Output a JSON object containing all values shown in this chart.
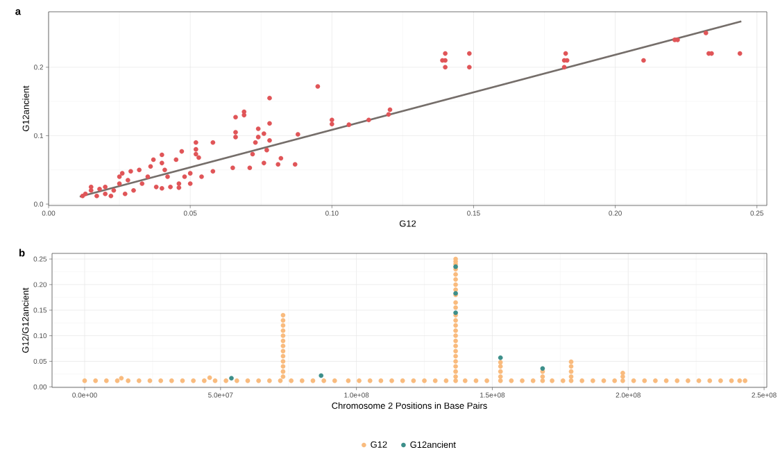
{
  "chart_data": [
    {
      "type": "scatter",
      "title": "a",
      "xlabel": "G12",
      "ylabel": "G12ancient",
      "xlim": [
        0,
        0.2535
      ],
      "ylim": [
        -0.002,
        0.281
      ],
      "xticks": [
        {
          "value": 0,
          "label": "0.00"
        },
        {
          "value": 0.05,
          "label": "0.05"
        },
        {
          "value": 0.1,
          "label": "0.10"
        },
        {
          "value": 0.15,
          "label": "0.15"
        },
        {
          "value": 0.2,
          "label": "0.20"
        },
        {
          "value": 0.25,
          "label": "0.25"
        }
      ],
      "yticks": [
        {
          "value": 0,
          "label": "0.0"
        },
        0.1,
        0.2
      ],
      "grid": true,
      "series": [
        {
          "color": "#e05558",
          "x": [
            0.012,
            0.013,
            0.015,
            0.015,
            0.017,
            0.018,
            0.02,
            0.02,
            0.022,
            0.023,
            0.025,
            0.025,
            0.026,
            0.027,
            0.028,
            0.03,
            0.029,
            0.032,
            0.033,
            0.035,
            0.036,
            0.037,
            0.038,
            0.04,
            0.04,
            0.04,
            0.041,
            0.042,
            0.043,
            0.045,
            0.046,
            0.046,
            0.047,
            0.048,
            0.05,
            0.05,
            0.052,
            0.052,
            0.052,
            0.053,
            0.054,
            0.058,
            0.058,
            0.065,
            0.066,
            0.066,
            0.066,
            0.069,
            0.069,
            0.071,
            0.072,
            0.073,
            0.074,
            0.074,
            0.076,
            0.076,
            0.077,
            0.078,
            0.078,
            0.078,
            0.081,
            0.082,
            0.087,
            0.088,
            0.095,
            0.1,
            0.1,
            0.106,
            0.113,
            0.1205,
            0.12,
            0.14,
            0.14,
            0.139,
            0.14,
            0.1485,
            0.1485,
            0.182,
            0.1825,
            0.183,
            0.182,
            0.21,
            0.221,
            0.222,
            0.232,
            0.233,
            0.234,
            0.244
          ],
          "values": [
            0.012,
            0.015,
            0.02,
            0.025,
            0.012,
            0.022,
            0.015,
            0.025,
            0.012,
            0.02,
            0.03,
            0.04,
            0.045,
            0.015,
            0.035,
            0.02,
            0.048,
            0.05,
            0.03,
            0.04,
            0.055,
            0.065,
            0.025,
            0.072,
            0.06,
            0.023,
            0.05,
            0.04,
            0.025,
            0.065,
            0.03,
            0.024,
            0.077,
            0.04,
            0.045,
            0.03,
            0.073,
            0.09,
            0.08,
            0.068,
            0.04,
            0.048,
            0.09,
            0.053,
            0.105,
            0.127,
            0.098,
            0.135,
            0.13,
            0.053,
            0.073,
            0.09,
            0.11,
            0.098,
            0.06,
            0.103,
            0.079,
            0.118,
            0.155,
            0.093,
            0.058,
            0.067,
            0.058,
            0.102,
            0.172,
            0.117,
            0.123,
            0.116,
            0.123,
            0.138,
            0.131,
            0.22,
            0.21,
            0.21,
            0.2,
            0.22,
            0.2,
            0.21,
            0.22,
            0.21,
            0.2,
            0.21,
            0.24,
            0.24,
            0.25,
            0.22,
            0.22,
            0.22
          ]
        },
        {
          "type": "line",
          "color": "#756e6a",
          "x": [
            0.011,
            0.2445
          ],
          "values": [
            0.011,
            0.267
          ]
        }
      ]
    },
    {
      "type": "scatter",
      "title": "b",
      "xlabel": "Chromosome 2 Positions in Base Pairs",
      "ylabel": "G12/G12ancient",
      "xlim": [
        -12000000,
        251000000
      ],
      "ylim": [
        -0.001,
        0.261
      ],
      "xticks": [
        {
          "value": 0,
          "label": "0.0e+00"
        },
        {
          "value": 50000000,
          "label": "5.0e+07"
        },
        {
          "value": 100000000,
          "label": "1.0e+08"
        },
        {
          "value": 150000000,
          "label": "1.5e+08"
        },
        {
          "value": 200000000,
          "label": "2.0e+08"
        },
        {
          "value": 250000000,
          "label": "2.5e+08"
        }
      ],
      "yticks": [
        {
          "value": 0,
          "label": "0.00"
        },
        0.05,
        {
          "value": 0.1,
          "label": "0.10"
        },
        0.15,
        {
          "value": 0.2,
          "label": "0.20"
        },
        0.25
      ],
      "grid": true,
      "legend": "bottom",
      "series": [
        {
          "name": "G12",
          "color": "#f9bb7e",
          "x": [
            0,
            4000000,
            8000000,
            12000000,
            13500000,
            16000000,
            20000000,
            24000000,
            28000000,
            32000000,
            36000000,
            40000000,
            44000000,
            46000000,
            48000000,
            52000000,
            56000000,
            60000000,
            64000000,
            68000000,
            72000000,
            73000000,
            73000000,
            73000000,
            73000000,
            73000000,
            73000000,
            73000000,
            73000000,
            73000000,
            73000000,
            73000000,
            73000000,
            73000000,
            76000000,
            80000000,
            84000000,
            88000000,
            92000000,
            97000000,
            101000000,
            105000000,
            109000000,
            113000000,
            117000000,
            121000000,
            125000000,
            129000000,
            133000000,
            136500000,
            136500000,
            136500000,
            136500000,
            136500000,
            136500000,
            136500000,
            136500000,
            136500000,
            136500000,
            136500000,
            136500000,
            136500000,
            136500000,
            136500000,
            136500000,
            136500000,
            136500000,
            136500000,
            136500000,
            136500000,
            136500000,
            136500000,
            136500000,
            136500000,
            140000000,
            144000000,
            148000000,
            153000000,
            153000000,
            153000000,
            153000000,
            153000000,
            157000000,
            161000000,
            165000000,
            168500000,
            168500000,
            168500000,
            172000000,
            176000000,
            179000000,
            179000000,
            179000000,
            179000000,
            179000000,
            183000000,
            187000000,
            191000000,
            195000000,
            198000000,
            198000000,
            198000000,
            202000000,
            206000000,
            210000000,
            214000000,
            218000000,
            222000000,
            226000000,
            230000000,
            234000000,
            238000000,
            241000000,
            243000000
          ],
          "values": [
            0.012,
            0.012,
            0.012,
            0.012,
            0.017,
            0.012,
            0.012,
            0.012,
            0.012,
            0.012,
            0.012,
            0.012,
            0.012,
            0.018,
            0.012,
            0.012,
            0.012,
            0.012,
            0.012,
            0.012,
            0.012,
            0.02,
            0.03,
            0.04,
            0.05,
            0.06,
            0.07,
            0.08,
            0.09,
            0.1,
            0.11,
            0.12,
            0.13,
            0.14,
            0.012,
            0.012,
            0.012,
            0.012,
            0.012,
            0.012,
            0.012,
            0.012,
            0.012,
            0.012,
            0.012,
            0.012,
            0.012,
            0.012,
            0.012,
            0.012,
            0.02,
            0.03,
            0.04,
            0.05,
            0.06,
            0.07,
            0.08,
            0.09,
            0.1,
            0.11,
            0.12,
            0.13,
            0.14,
            0.155,
            0.165,
            0.18,
            0.19,
            0.2,
            0.21,
            0.22,
            0.23,
            0.24,
            0.245,
            0.25,
            0.012,
            0.012,
            0.012,
            0.012,
            0.02,
            0.03,
            0.04,
            0.048,
            0.012,
            0.012,
            0.012,
            0.012,
            0.02,
            0.03,
            0.012,
            0.012,
            0.012,
            0.02,
            0.03,
            0.04,
            0.049,
            0.012,
            0.012,
            0.012,
            0.012,
            0.012,
            0.02,
            0.027,
            0.012,
            0.012,
            0.012,
            0.012,
            0.012,
            0.012,
            0.012,
            0.012,
            0.012,
            0.012,
            0.012,
            0.012
          ]
        },
        {
          "name": "G12ancient",
          "color": "#3d8f8a",
          "x": [
            54000000,
            87000000,
            136500000,
            136500000,
            136500000,
            153000000,
            168500000
          ],
          "values": [
            0.017,
            0.022,
            0.145,
            0.183,
            0.235,
            0.057,
            0.036
          ]
        }
      ]
    }
  ]
}
